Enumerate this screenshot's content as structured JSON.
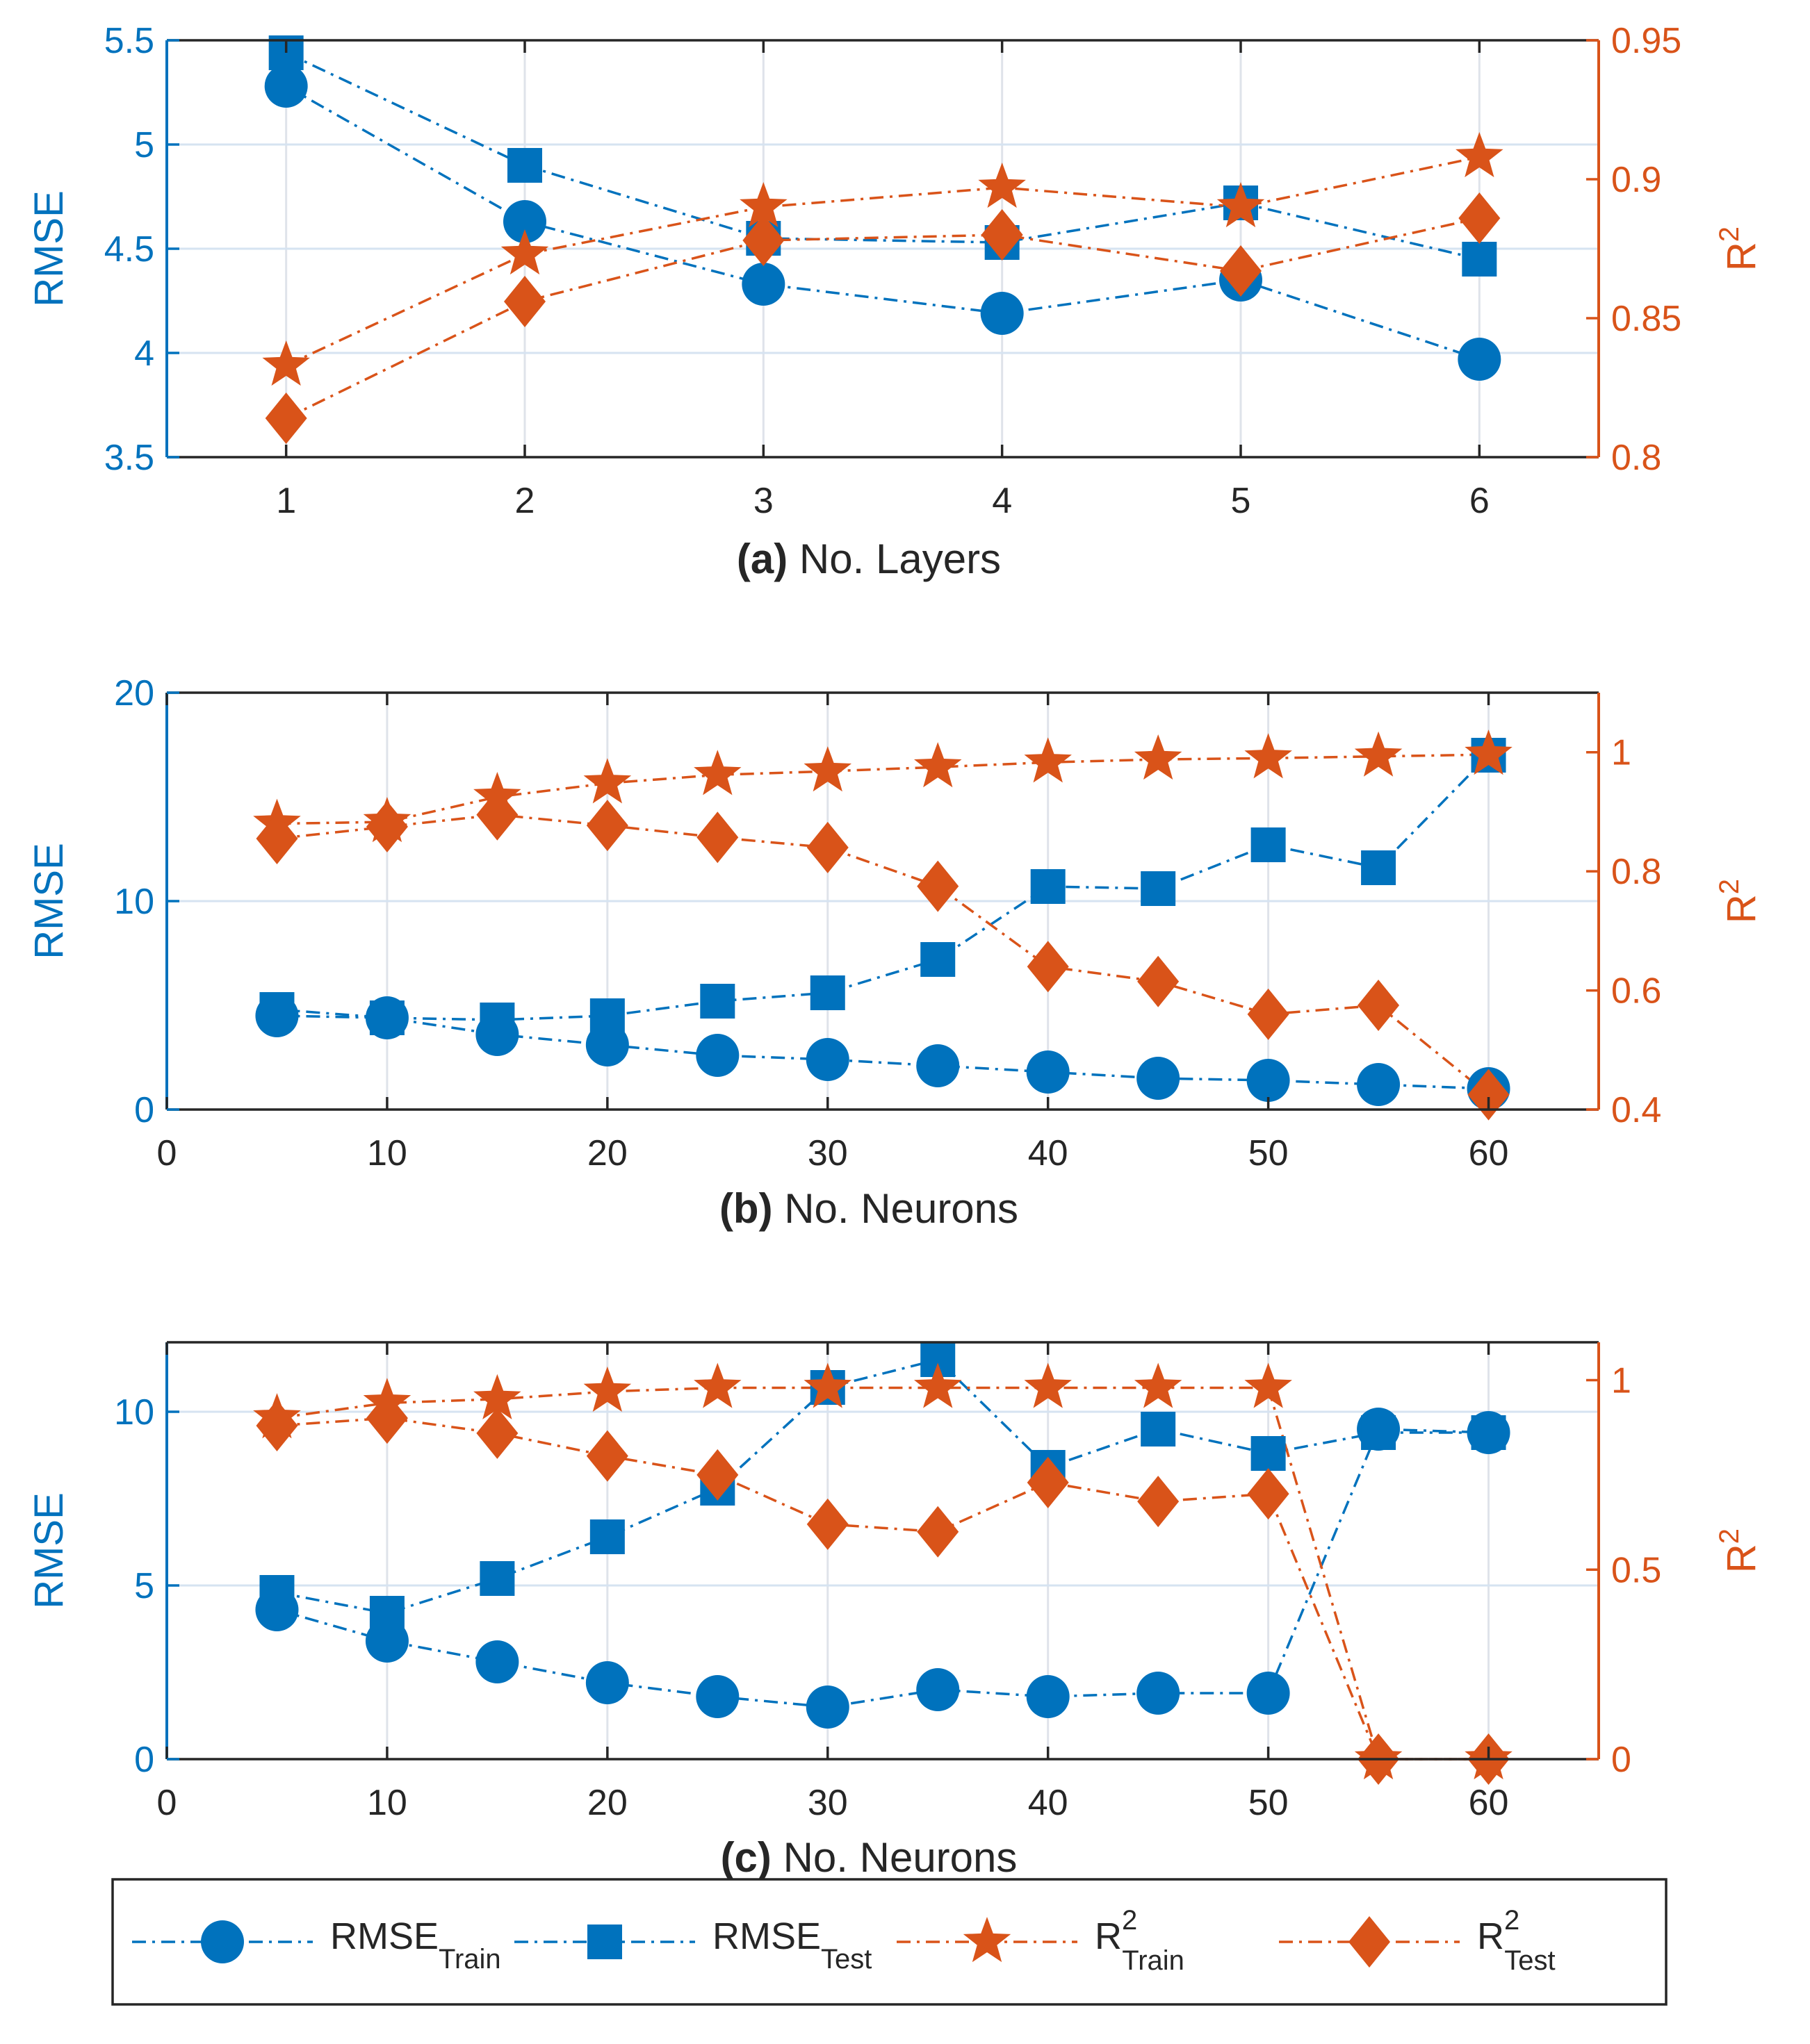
{
  "colors": {
    "rmse": "#0072BD",
    "r2": "#D95319",
    "grid": "#dfe3ea",
    "axis": "#262626"
  },
  "legend": [
    {
      "key": "rmse_train",
      "base": "RMSE",
      "sup": "",
      "sub": "Train",
      "marker": "circle",
      "color": "#0072BD"
    },
    {
      "key": "rmse_test",
      "base": "RMSE",
      "sup": "",
      "sub": "Test",
      "marker": "square",
      "color": "#0072BD"
    },
    {
      "key": "r2_train",
      "base": "R",
      "sup": "2",
      "sub": "Train",
      "marker": "star",
      "color": "#D95319"
    },
    {
      "key": "r2_test",
      "base": "R",
      "sup": "2",
      "sub": "Test",
      "marker": "diamond",
      "color": "#D95319"
    }
  ],
  "chart_data": [
    {
      "type": "line",
      "panel": "a",
      "xlabel_tag": "(a)",
      "xlabel_text": "No. Layers",
      "ylabel_left": "RMSE",
      "ylabel_right_base": "R",
      "ylabel_right_sup": "2",
      "xlim": [
        0.5,
        6.5
      ],
      "ylim_left": [
        3.5,
        5.5
      ],
      "ylim_right": [
        0.8,
        0.95
      ],
      "x_ticks": [
        1,
        2,
        3,
        4,
        5,
        6
      ],
      "x_tick_labels": [
        "1",
        "2",
        "3",
        "4",
        "5",
        "6"
      ],
      "y_left_ticks": [
        3.5,
        4,
        4.5,
        5,
        5.5
      ],
      "y_left_tick_labels": [
        "3.5",
        "4",
        "4.5",
        "5",
        "5.5"
      ],
      "y_right_ticks": [
        0.8,
        0.85,
        0.9,
        0.95
      ],
      "y_right_tick_labels": [
        "0.8",
        "0.85",
        "0.9",
        "0.95"
      ],
      "x": [
        1,
        2,
        3,
        4,
        5,
        6
      ],
      "series": [
        {
          "key": "rmse_train",
          "axis": "left",
          "values": [
            5.28,
            4.63,
            4.33,
            4.19,
            4.35,
            3.97
          ]
        },
        {
          "key": "rmse_test",
          "axis": "left",
          "values": [
            5.44,
            4.9,
            4.55,
            4.53,
            4.72,
            4.45
          ]
        },
        {
          "key": "r2_train",
          "axis": "right",
          "values": [
            0.833,
            0.873,
            0.89,
            0.897,
            0.89,
            0.908
          ]
        },
        {
          "key": "r2_test",
          "axis": "right",
          "values": [
            0.814,
            0.856,
            0.878,
            0.88,
            0.867,
            0.886
          ]
        }
      ]
    },
    {
      "type": "line",
      "panel": "b",
      "xlabel_tag": "(b)",
      "xlabel_text": "No. Neurons",
      "ylabel_left": "RMSE",
      "ylabel_right_base": "R",
      "ylabel_right_sup": "2",
      "xlim": [
        0,
        65
      ],
      "ylim_left": [
        0,
        20
      ],
      "ylim_right": [
        0.4,
        1.1
      ],
      "x_ticks": [
        0,
        10,
        20,
        30,
        40,
        50,
        60
      ],
      "x_tick_labels": [
        "0",
        "10",
        "20",
        "30",
        "40",
        "50",
        "60"
      ],
      "y_left_ticks": [
        0,
        10,
        20
      ],
      "y_left_tick_labels": [
        "0",
        "10",
        "20"
      ],
      "y_right_ticks": [
        0.4,
        0.6,
        0.8,
        1
      ],
      "y_right_tick_labels": [
        "0.4",
        "0.6",
        "0.8",
        "1"
      ],
      "x": [
        5,
        10,
        15,
        20,
        25,
        30,
        35,
        40,
        45,
        50,
        55,
        60
      ],
      "series": [
        {
          "key": "rmse_train",
          "axis": "left",
          "values": [
            4.5,
            4.4,
            3.6,
            3.1,
            2.6,
            2.4,
            2.1,
            1.8,
            1.5,
            1.4,
            1.2,
            1.0
          ]
        },
        {
          "key": "rmse_test",
          "axis": "left",
          "values": [
            4.8,
            4.4,
            4.3,
            4.5,
            5.2,
            5.6,
            7.2,
            10.7,
            10.6,
            12.7,
            11.6,
            17.0
          ]
        },
        {
          "key": "r2_train",
          "axis": "right",
          "values": [
            0.88,
            0.883,
            0.925,
            0.948,
            0.962,
            0.968,
            0.975,
            0.983,
            0.988,
            0.99,
            0.993,
            0.996
          ]
        },
        {
          "key": "r2_test",
          "axis": "right",
          "values": [
            0.855,
            0.875,
            0.895,
            0.877,
            0.857,
            0.84,
            0.775,
            0.64,
            0.615,
            0.56,
            0.575,
            0.425
          ]
        }
      ]
    },
    {
      "type": "line",
      "panel": "c",
      "xlabel_tag": "(c)",
      "xlabel_text": "No. Neurons",
      "ylabel_left": "RMSE",
      "ylabel_right_base": "R",
      "ylabel_right_sup": "2",
      "xlim": [
        0,
        65
      ],
      "ylim_left": [
        0,
        12
      ],
      "ylim_right": [
        0,
        1.1
      ],
      "x_ticks": [
        0,
        10,
        20,
        30,
        40,
        50,
        60
      ],
      "x_tick_labels": [
        "0",
        "10",
        "20",
        "30",
        "40",
        "50",
        "60"
      ],
      "y_left_ticks": [
        0,
        5,
        10
      ],
      "y_left_tick_labels": [
        "0",
        "5",
        "10"
      ],
      "y_right_ticks": [
        0,
        0.5,
        1
      ],
      "y_right_tick_labels": [
        "0",
        "0.5",
        "1"
      ],
      "x": [
        5,
        10,
        15,
        20,
        25,
        30,
        35,
        40,
        45,
        50,
        55,
        60
      ],
      "series": [
        {
          "key": "rmse_train",
          "axis": "left",
          "values": [
            4.3,
            3.4,
            2.8,
            2.2,
            1.8,
            1.5,
            2.0,
            1.8,
            1.9,
            1.9,
            9.5,
            9.4
          ]
        },
        {
          "key": "rmse_test",
          "axis": "left",
          "values": [
            4.8,
            4.2,
            5.2,
            6.4,
            7.8,
            10.7,
            11.5,
            8.4,
            9.5,
            8.8,
            9.4,
            9.4
          ]
        },
        {
          "key": "r2_train",
          "axis": "right",
          "values": [
            0.9,
            0.94,
            0.95,
            0.97,
            0.98,
            0.98,
            0.98,
            0.98,
            0.98,
            0.98,
            0,
            0
          ]
        },
        {
          "key": "r2_test",
          "axis": "right",
          "values": [
            0.88,
            0.9,
            0.86,
            0.8,
            0.75,
            0.62,
            0.6,
            0.73,
            0.68,
            0.7,
            0,
            0
          ]
        }
      ]
    }
  ]
}
